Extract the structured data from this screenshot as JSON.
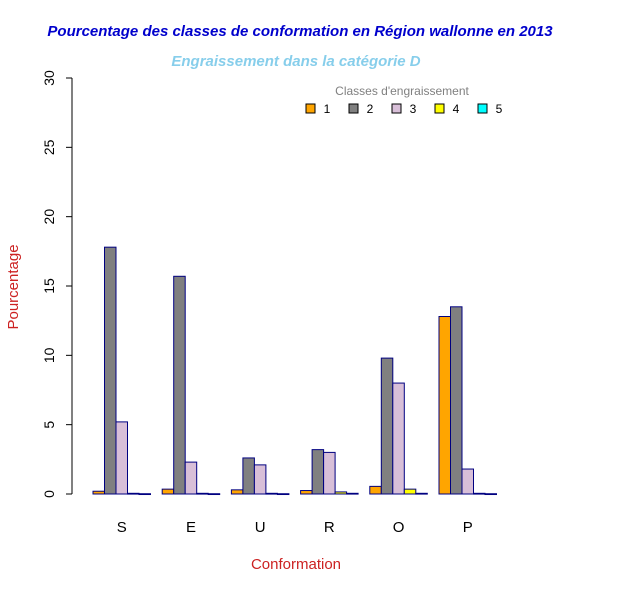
{
  "chart_data": {
    "type": "bar",
    "title": "Pourcentage des classes de conformation en Région wallonne en 2013",
    "subtitle": "Engraissement dans la catégorie D",
    "xlabel": "Conformation",
    "ylabel": "Pourcentage",
    "ylim": [
      0,
      30
    ],
    "yticks": [
      0,
      5,
      10,
      15,
      20,
      25,
      30
    ],
    "categories": [
      "S",
      "E",
      "U",
      "R",
      "O",
      "P"
    ],
    "legend_title": "Classes d'engraissement",
    "legend_position": "top-right",
    "grid": false,
    "series": [
      {
        "name": "1",
        "color": "#FFA500",
        "values": [
          0.2,
          0.35,
          0.3,
          0.25,
          0.55,
          12.8
        ]
      },
      {
        "name": "2",
        "color": "#808080",
        "values": [
          17.8,
          15.7,
          2.6,
          3.2,
          9.8,
          13.5
        ]
      },
      {
        "name": "3",
        "color": "#D8BFD8",
        "values": [
          5.2,
          2.3,
          2.1,
          3.0,
          8.0,
          1.8
        ]
      },
      {
        "name": "4",
        "color": "#FFFF00",
        "values": [
          0.05,
          0.05,
          0.05,
          0.15,
          0.35,
          0.05
        ]
      },
      {
        "name": "5",
        "color": "#00FFFF",
        "values": [
          0.02,
          0.02,
          0.02,
          0.05,
          0.05,
          0.02
        ]
      }
    ],
    "colors": {
      "title": "#0000CC",
      "subtitle": "#87CEEB",
      "axis_labels": "#CC2222",
      "bar_border": "#000080",
      "legend_title": "#808080"
    }
  }
}
